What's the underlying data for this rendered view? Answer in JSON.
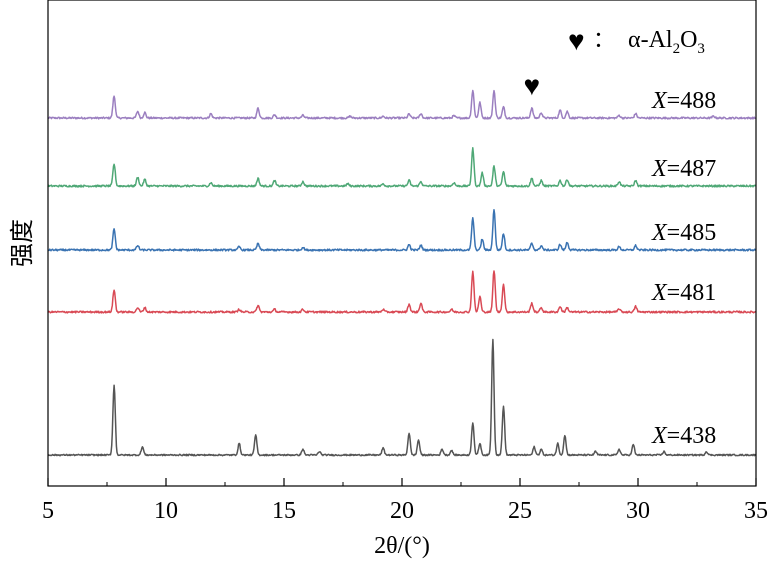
{
  "chart_data": {
    "type": "line",
    "title": "",
    "xlabel": "2θ/(°)",
    "ylabel": "强度",
    "xlim": [
      5,
      35
    ],
    "xticks": [
      5,
      10,
      15,
      20,
      25,
      30,
      35
    ],
    "y_ticks_shown": false,
    "grid": false,
    "legend_position": "top-right",
    "legend": {
      "symbol": "♥",
      "separator": "：",
      "label_prefix": "α-Al",
      "sub1": "2",
      "label_mid": "O",
      "sub2": "3"
    },
    "annotation": {
      "symbol": "♥",
      "x": 25.5,
      "series": "X=488"
    },
    "series": [
      {
        "name": "X=488",
        "label_var": "X",
        "label_eq": "=488",
        "color": "#9b7fc0",
        "baseline": 0.88,
        "scale": 0.14,
        "peaks": [
          [
            7.8,
            1.0
          ],
          [
            8.8,
            0.3
          ],
          [
            9.1,
            0.25
          ],
          [
            11.9,
            0.2
          ],
          [
            13.9,
            0.45
          ],
          [
            14.6,
            0.15
          ],
          [
            15.8,
            0.12
          ],
          [
            17.8,
            0.08
          ],
          [
            19.2,
            0.08
          ],
          [
            20.3,
            0.18
          ],
          [
            20.8,
            0.2
          ],
          [
            22.2,
            0.1
          ],
          [
            23.0,
            1.25
          ],
          [
            23.3,
            0.7
          ],
          [
            23.9,
            1.25
          ],
          [
            24.3,
            0.5
          ],
          [
            25.5,
            0.45
          ],
          [
            25.9,
            0.25
          ],
          [
            26.7,
            0.35
          ],
          [
            27.0,
            0.3
          ],
          [
            29.2,
            0.12
          ],
          [
            29.9,
            0.2
          ],
          [
            33.2,
            0.08
          ]
        ]
      },
      {
        "name": "X=487",
        "label_var": "X",
        "label_eq": "=487",
        "color": "#4fa876",
        "baseline": 0.97,
        "scale": 0.14,
        "peaks": [
          [
            7.8,
            1.0
          ],
          [
            8.8,
            0.4
          ],
          [
            9.1,
            0.3
          ],
          [
            11.9,
            0.15
          ],
          [
            13.9,
            0.35
          ],
          [
            14.6,
            0.25
          ],
          [
            15.8,
            0.2
          ],
          [
            17.7,
            0.1
          ],
          [
            19.2,
            0.1
          ],
          [
            20.3,
            0.25
          ],
          [
            20.8,
            0.2
          ],
          [
            22.2,
            0.15
          ],
          [
            23.0,
            1.7
          ],
          [
            23.4,
            0.6
          ],
          [
            23.9,
            0.9
          ],
          [
            24.3,
            0.65
          ],
          [
            25.5,
            0.35
          ],
          [
            25.9,
            0.25
          ],
          [
            26.7,
            0.25
          ],
          [
            27.0,
            0.3
          ],
          [
            29.2,
            0.2
          ],
          [
            29.9,
            0.25
          ]
        ]
      },
      {
        "name": "X=485",
        "label_var": "X",
        "label_eq": "=485",
        "color": "#3a73b2",
        "baseline": 0.96,
        "scale": 0.15,
        "peaks": [
          [
            7.8,
            0.95
          ],
          [
            8.8,
            0.2
          ],
          [
            13.1,
            0.15
          ],
          [
            13.9,
            0.3
          ],
          [
            15.8,
            0.12
          ],
          [
            20.3,
            0.25
          ],
          [
            20.8,
            0.22
          ],
          [
            23.0,
            1.45
          ],
          [
            23.4,
            0.5
          ],
          [
            23.9,
            1.85
          ],
          [
            24.3,
            0.75
          ],
          [
            25.5,
            0.3
          ],
          [
            25.9,
            0.2
          ],
          [
            26.7,
            0.25
          ],
          [
            27.0,
            0.35
          ],
          [
            29.2,
            0.15
          ],
          [
            29.9,
            0.2
          ]
        ]
      },
      {
        "name": "X=481",
        "label_var": "X",
        "label_eq": "=481",
        "color": "#d94a55",
        "baseline": 1.0,
        "scale": 0.15,
        "peaks": [
          [
            7.8,
            1.0
          ],
          [
            8.8,
            0.2
          ],
          [
            9.1,
            0.2
          ],
          [
            13.1,
            0.12
          ],
          [
            13.9,
            0.3
          ],
          [
            14.6,
            0.12
          ],
          [
            15.8,
            0.12
          ],
          [
            19.2,
            0.12
          ],
          [
            20.3,
            0.35
          ],
          [
            20.8,
            0.4
          ],
          [
            22.1,
            0.12
          ],
          [
            23.0,
            1.85
          ],
          [
            23.3,
            0.7
          ],
          [
            23.9,
            1.9
          ],
          [
            24.3,
            1.25
          ],
          [
            25.5,
            0.4
          ],
          [
            25.9,
            0.2
          ],
          [
            26.7,
            0.25
          ],
          [
            27.0,
            0.2
          ],
          [
            29.2,
            0.15
          ],
          [
            29.9,
            0.25
          ]
        ]
      },
      {
        "name": "X=438",
        "label_var": "X",
        "label_eq": "=438",
        "color": "#555555",
        "baseline": 0.0,
        "scale": 1.0,
        "peaks": [
          [
            7.8,
            0.6
          ],
          [
            9.0,
            0.07
          ],
          [
            13.1,
            0.1
          ],
          [
            13.8,
            0.17
          ],
          [
            15.8,
            0.05
          ],
          [
            16.5,
            0.03
          ],
          [
            19.2,
            0.06
          ],
          [
            20.3,
            0.19
          ],
          [
            20.7,
            0.13
          ],
          [
            21.7,
            0.05
          ],
          [
            22.1,
            0.04
          ],
          [
            23.0,
            0.28
          ],
          [
            23.3,
            0.1
          ],
          [
            23.85,
            1.0
          ],
          [
            24.3,
            0.42
          ],
          [
            25.6,
            0.07
          ],
          [
            25.9,
            0.05
          ],
          [
            26.6,
            0.1
          ],
          [
            26.9,
            0.17
          ],
          [
            28.2,
            0.03
          ],
          [
            29.2,
            0.05
          ],
          [
            29.8,
            0.09
          ],
          [
            31.1,
            0.03
          ],
          [
            32.9,
            0.03
          ]
        ]
      }
    ]
  }
}
